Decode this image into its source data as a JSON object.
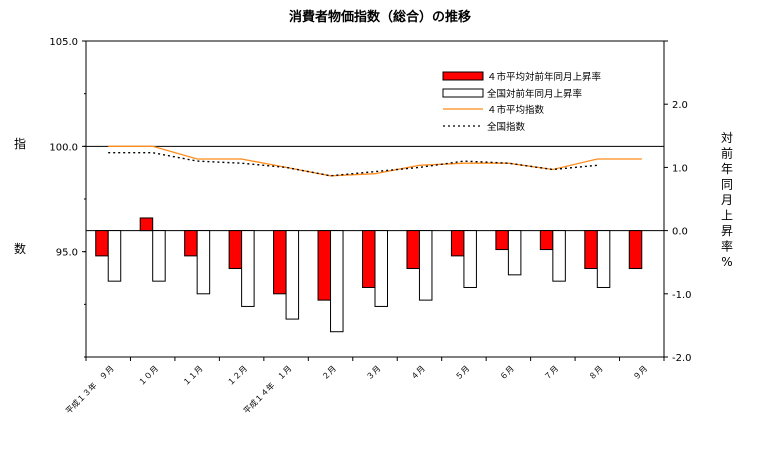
{
  "chart_data": {
    "type": "bar+line",
    "title": "消費者物価指数（総合）の推移",
    "ylabel_left": [
      "指",
      "数"
    ],
    "ylabel_right": [
      "対",
      "前",
      "年",
      "同",
      "月",
      "上",
      "昇",
      "率",
      "%"
    ],
    "left_axis": {
      "min": 90.0,
      "max": 105.0,
      "ticks": [
        "105.0",
        "100.0",
        "95.0"
      ],
      "tick_values": [
        105,
        100,
        95
      ]
    },
    "right_axis": {
      "min": -2.0,
      "max": 3.0,
      "ticks": [
        "2.0",
        "1.0",
        "0.0",
        "-1.0",
        "-2.0"
      ],
      "tick_values": [
        2,
        1,
        0,
        -1,
        -2
      ]
    },
    "categories": [
      "平成１３年　９月",
      "１０月",
      "１１月",
      "１２月",
      "平成１４年　１月",
      "２月",
      "３月",
      "４月",
      "５月",
      "６月",
      "７月",
      "８月",
      "９月"
    ],
    "series": [
      {
        "name": "４市平均対前年同月上昇率",
        "type": "bar",
        "axis": "right",
        "color": "#ff0000",
        "values": [
          -0.4,
          0.2,
          -0.4,
          -0.6,
          -1.0,
          -1.1,
          -0.9,
          -0.6,
          -0.4,
          -0.3,
          -0.3,
          -0.6,
          -0.6
        ]
      },
      {
        "name": "全国対前年同月上昇率",
        "type": "bar",
        "axis": "right",
        "color": "#ffffff",
        "values": [
          -0.8,
          -0.8,
          -1.0,
          -1.2,
          -1.4,
          -1.6,
          -1.2,
          -1.1,
          -0.9,
          -0.7,
          -0.8,
          -0.9,
          null
        ]
      },
      {
        "name": "４市平均指数",
        "type": "line",
        "axis": "left",
        "color": "#ff8c1a",
        "values": [
          100.0,
          100.0,
          99.4,
          99.4,
          99.0,
          98.6,
          98.7,
          99.1,
          99.2,
          99.2,
          98.9,
          99.4,
          99.4
        ]
      },
      {
        "name": "全国指数",
        "type": "line",
        "axis": "left",
        "color": "#000000",
        "dash": true,
        "values": [
          99.7,
          99.7,
          99.3,
          99.2,
          99.0,
          98.6,
          98.8,
          99.0,
          99.3,
          99.2,
          98.9,
          99.1,
          null
        ]
      }
    ],
    "legend_position": "top-right",
    "reference_line": {
      "axis": "left",
      "value": 100.0
    }
  }
}
